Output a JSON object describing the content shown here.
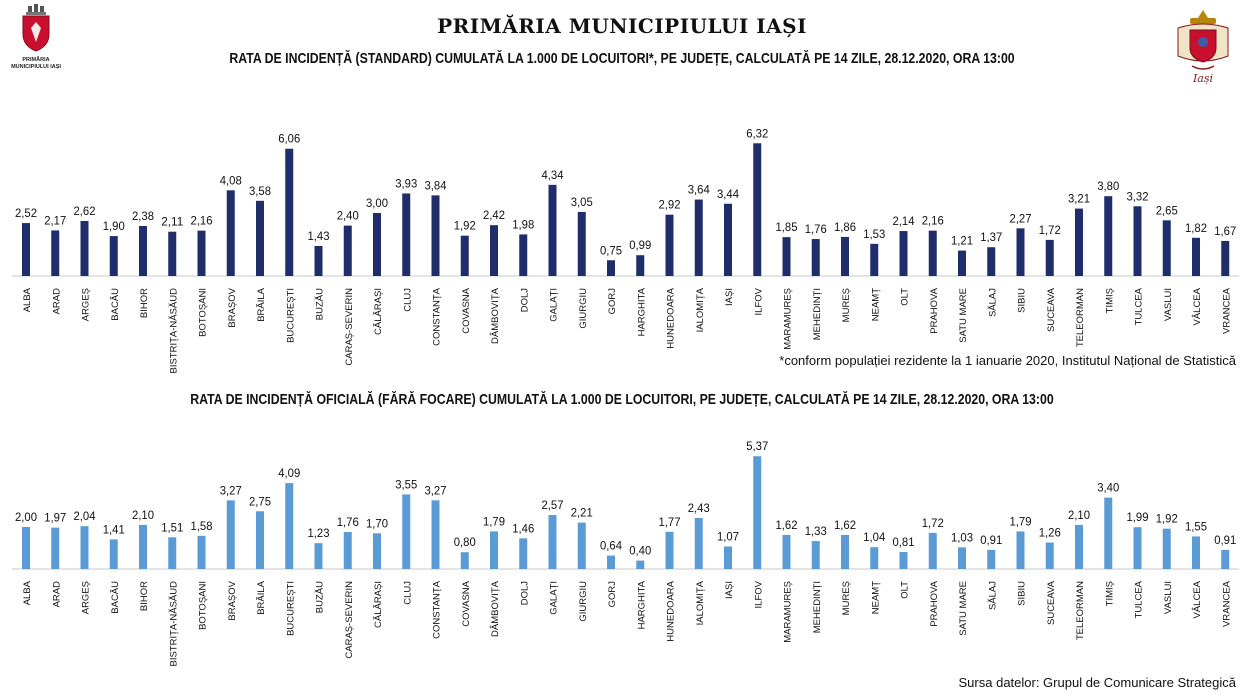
{
  "header": {
    "title": "PRIMĂRIA MUNICIPIULUI IAȘI",
    "logo_caption": "PRIMĂRIA MUNICIPIULUI IAȘI",
    "logo_right_text": "Iași"
  },
  "footnote": "*conform populației rezidente la 1 ianuarie 2020, Institutul Național de Statistică",
  "source": "Sursa datelor: Grupul de Comunicare Strategică",
  "colors": {
    "series1": "#1f2d6b",
    "series2": "#5b9bd5",
    "axis": "#c9c9c9",
    "text": "#111111",
    "crest_red": "#c8102e"
  },
  "chart_data": [
    {
      "type": "bar",
      "title": "RATA DE INCIDENȚĂ (STANDARD) CUMULATĂ LA 1.000 DE LOCUITORI*, PE JUDEȚE, CALCULATĂ PE 14 ZILE, 28.12.2020, ORA 13:00",
      "xlabel": "",
      "ylabel": "",
      "grid": false,
      "legend": "none",
      "ylim": [
        0,
        7
      ],
      "categories": [
        "ALBA",
        "ARAD",
        "ARGEȘ",
        "BACĂU",
        "BIHOR",
        "BISTRIȚA-NĂSĂUD",
        "BOTOȘANI",
        "BRAȘOV",
        "BRĂILA",
        "BUCUREȘTI",
        "BUZĂU",
        "CARAȘ-SEVERIN",
        "CĂLĂRAȘI",
        "CLUJ",
        "CONSTANȚA",
        "COVASNA",
        "DÂMBOVIȚA",
        "DOLJ",
        "GALAȚI",
        "GIURGIU",
        "GORJ",
        "HARGHITA",
        "HUNEDOARA",
        "IALOMIȚA",
        "IAȘI",
        "ILFOV",
        "MARAMUREȘ",
        "MEHEDINȚI",
        "MUREȘ",
        "NEAMȚ",
        "OLT",
        "PRAHOVA",
        "SATU MARE",
        "SĂLAJ",
        "SIBIU",
        "SUCEAVA",
        "TELEORMAN",
        "TIMIȘ",
        "TULCEA",
        "VASLUI",
        "VÂLCEA",
        "VRANCEA"
      ],
      "values": [
        2.52,
        2.17,
        2.62,
        1.9,
        2.38,
        2.11,
        2.16,
        4.08,
        3.58,
        6.06,
        1.43,
        2.4,
        3.0,
        3.93,
        3.84,
        1.92,
        2.42,
        1.98,
        4.34,
        3.05,
        0.75,
        0.99,
        2.92,
        3.64,
        3.44,
        6.32,
        1.85,
        1.76,
        1.86,
        1.53,
        2.14,
        2.16,
        1.21,
        1.37,
        2.27,
        1.72,
        3.21,
        3.8,
        3.32,
        2.65,
        1.82,
        1.67
      ],
      "labels": [
        "2,52",
        "2,17",
        "2,62",
        "1,90",
        "2,38",
        "2,11",
        "2,16",
        "4,08",
        "3,58",
        "6,06",
        "1,43",
        "2,40",
        "3,00",
        "3,93",
        "3,84",
        "1,92",
        "2,42",
        "1,98",
        "4,34",
        "3,05",
        "0,75",
        "0,99",
        "2,92",
        "3,64",
        "3,44",
        "6,32",
        "1,85",
        "1,76",
        "1,86",
        "1,53",
        "2,14",
        "2,16",
        "1,21",
        "1,37",
        "2,27",
        "1,72",
        "3,21",
        "3,80",
        "3,32",
        "2,65",
        "1,82",
        "1,67"
      ]
    },
    {
      "type": "bar",
      "title": "RATA DE INCIDENȚĂ OFICIALĂ (FĂRĂ FOCARE) CUMULATĂ LA 1.000 DE LOCUITORI, PE JUDEȚE, CALCULATĂ PE 14 ZILE, 28.12.2020, ORA 13:00",
      "xlabel": "",
      "ylabel": "",
      "grid": false,
      "legend": "none",
      "ylim": [
        0,
        6
      ],
      "categories": [
        "ALBA",
        "ARAD",
        "ARGEȘ",
        "BACĂU",
        "BIHOR",
        "BISTRIȚA-NĂSĂUD",
        "BOTOȘANI",
        "BRAȘOV",
        "BRĂILA",
        "BUCUREȘTI",
        "BUZĂU",
        "CARAȘ-SEVERIN",
        "CĂLĂRAȘI",
        "CLUJ",
        "CONSTANȚA",
        "COVASNA",
        "DÂMBOVIȚA",
        "DOLJ",
        "GALAȚI",
        "GIURGIU",
        "GORJ",
        "HARGHITA",
        "HUNEDOARA",
        "IALOMIȚA",
        "IAȘI",
        "ILFOV",
        "MARAMUREȘ",
        "MEHEDINȚI",
        "MUREȘ",
        "NEAMȚ",
        "OLT",
        "PRAHOVA",
        "SATU MARE",
        "SĂLAJ",
        "SIBIU",
        "SUCEAVA",
        "TELEORMAN",
        "TIMIȘ",
        "TULCEA",
        "VASLUI",
        "VÂLCEA",
        "VRANCEA"
      ],
      "values": [
        2.0,
        1.97,
        2.04,
        1.41,
        2.1,
        1.51,
        1.58,
        3.27,
        2.75,
        4.09,
        1.23,
        1.76,
        1.7,
        3.55,
        3.27,
        0.8,
        1.79,
        1.46,
        2.57,
        2.21,
        0.64,
        0.4,
        1.77,
        2.43,
        1.07,
        5.37,
        1.62,
        1.33,
        1.62,
        1.04,
        0.81,
        1.72,
        1.03,
        0.91,
        1.79,
        1.26,
        2.1,
        3.4,
        1.99,
        1.92,
        1.55,
        0.91
      ],
      "labels": [
        "2,00",
        "1,97",
        "2,04",
        "1,41",
        "2,10",
        "1,51",
        "1,58",
        "3,27",
        "2,75",
        "4,09",
        "1,23",
        "1,76",
        "1,70",
        "3,55",
        "3,27",
        "0,80",
        "1,79",
        "1,46",
        "2,57",
        "2,21",
        "0,64",
        "0,40",
        "1,77",
        "2,43",
        "1,07",
        "5,37",
        "1,62",
        "1,33",
        "1,62",
        "1,04",
        "0,81",
        "1,72",
        "1,03",
        "0,91",
        "1,79",
        "1,26",
        "2,10",
        "3,40",
        "1,99",
        "1,92",
        "1,55",
        "0,91"
      ]
    }
  ]
}
